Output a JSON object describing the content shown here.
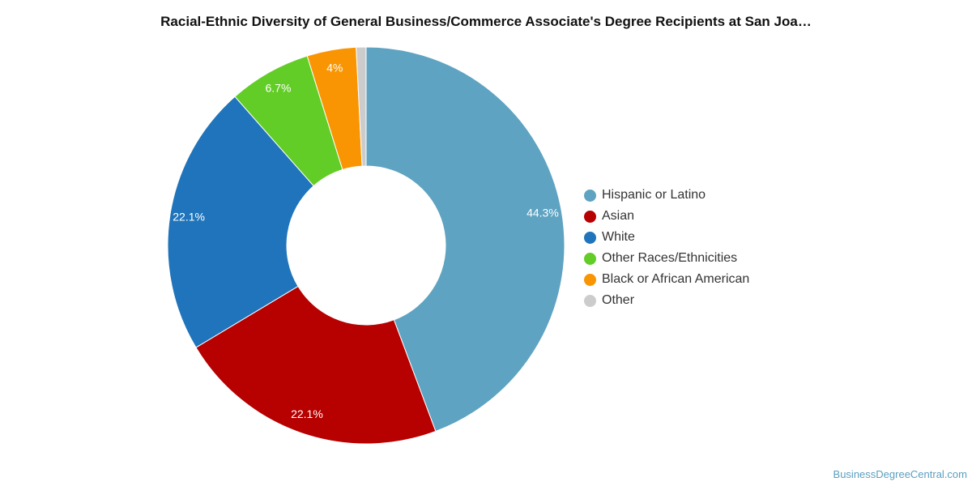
{
  "chart_data": {
    "type": "pie",
    "donut": true,
    "title": "Racial-Ethnic Diversity of General Business/Commerce Associate's Degree Recipients at San Joa…",
    "categories": [
      "Hispanic or Latino",
      "Asian",
      "White",
      "Other Races/Ethnicities",
      "Black or African American",
      "Other"
    ],
    "values": [
      44.3,
      22.1,
      22.1,
      6.7,
      4.0,
      0.8
    ],
    "value_labels": [
      "44.3%",
      "22.1%",
      "22.1%",
      "6.7%",
      "4%",
      ""
    ],
    "colors": [
      "#5ea3c1",
      "#b70000",
      "#1f74bb",
      "#62cd26",
      "#f99502",
      "#cccccc"
    ],
    "legend_position": "right"
  },
  "source": "BusinessDegreeCentral.com"
}
